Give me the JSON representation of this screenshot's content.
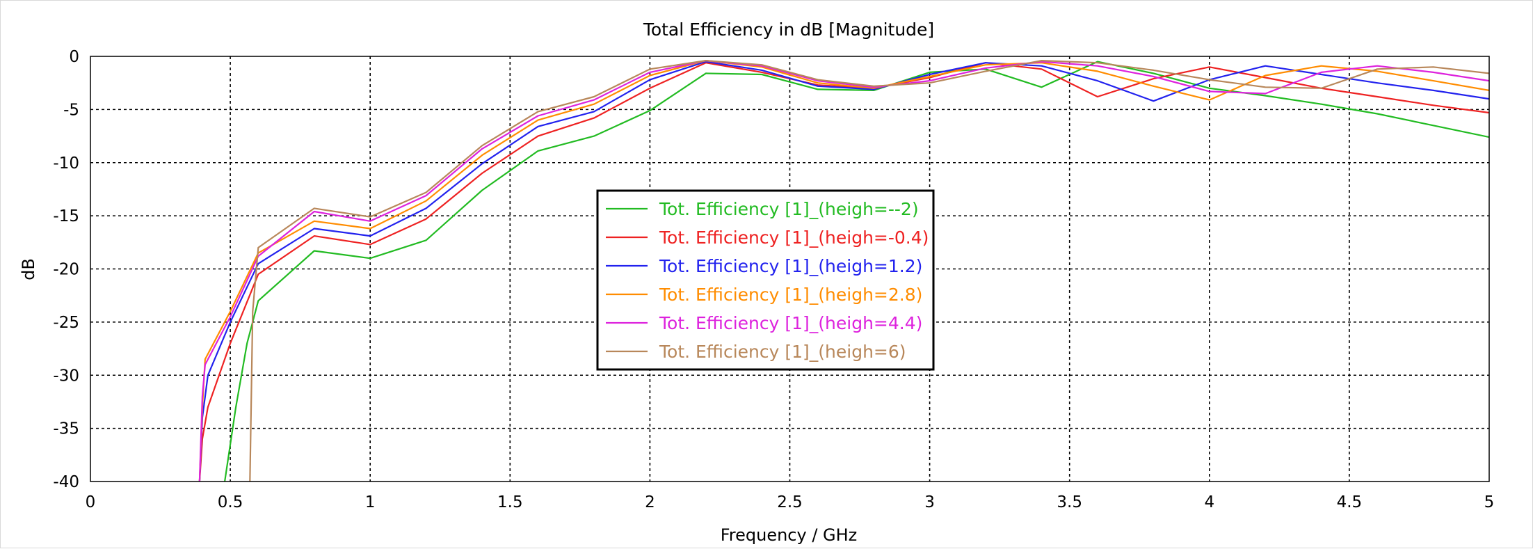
{
  "chart_data": {
    "type": "line",
    "title": "Total Efficiency in dB [Magnitude]",
    "xlabel": "Frequency / GHz",
    "ylabel": "dB",
    "xlim": [
      0,
      5
    ],
    "ylim": [
      -40,
      0
    ],
    "xticks": [
      0,
      0.5,
      1,
      1.5,
      2,
      2.5,
      3,
      3.5,
      4,
      4.5,
      5
    ],
    "xtick_labels": [
      "0",
      "0.5",
      "1",
      "1.5",
      "2",
      "2.5",
      "3",
      "3.5",
      "4",
      "4.5",
      "5"
    ],
    "yticks": [
      0,
      -5,
      -10,
      -15,
      -20,
      -25,
      -30,
      -35,
      -40
    ],
    "ytick_labels": [
      "0",
      "-5",
      "-10",
      "-15",
      "-20",
      "-25",
      "-30",
      "-35",
      "-40"
    ],
    "grid": true,
    "legend_position": "center",
    "series": [
      {
        "name": "Tot. Efficiency [1]_(heigh=--2)",
        "color": "#22bb22",
        "x": [
          0.48,
          0.52,
          0.56,
          0.6,
          0.8,
          1.0,
          1.2,
          1.4,
          1.6,
          1.8,
          2.0,
          2.2,
          2.4,
          2.6,
          2.8,
          3.0,
          3.2,
          3.4,
          3.6,
          3.8,
          4.0,
          4.2,
          4.4,
          4.6,
          4.8,
          5.0
        ],
        "y": [
          -40,
          -33,
          -27,
          -23,
          -18.3,
          -19,
          -17.3,
          -12.6,
          -8.9,
          -7.5,
          -5.1,
          -1.6,
          -1.7,
          -3.1,
          -3.2,
          -1.5,
          -1.2,
          -2.9,
          -0.5,
          -1.6,
          -3.0,
          -3.7,
          -4.5,
          -5.4,
          -6.5,
          -7.6
        ]
      },
      {
        "name": "Tot. Efficiency [1]_(heigh=-0.4)",
        "color": "#ee2222",
        "x": [
          0.39,
          0.4,
          0.42,
          0.5,
          0.6,
          0.8,
          1.0,
          1.2,
          1.4,
          1.6,
          1.8,
          2.0,
          2.2,
          2.4,
          2.6,
          2.8,
          3.0,
          3.2,
          3.4,
          3.6,
          3.8,
          4.0,
          4.2,
          4.4,
          4.6,
          4.8,
          5.0
        ],
        "y": [
          -40,
          -36,
          -33,
          -27,
          -20.5,
          -16.9,
          -17.7,
          -15.3,
          -11.0,
          -7.5,
          -5.8,
          -3.0,
          -0.6,
          -1.5,
          -2.7,
          -3.0,
          -2.0,
          -0.6,
          -1.2,
          -3.8,
          -2.1,
          -1.0,
          -2.0,
          -3.0,
          -3.8,
          -4.6,
          -5.3
        ]
      },
      {
        "name": "Tot. Efficiency [1]_(heigh=1.2)",
        "color": "#2222ee",
        "x": [
          0.39,
          0.4,
          0.42,
          0.5,
          0.6,
          0.8,
          1.0,
          1.2,
          1.4,
          1.6,
          1.8,
          2.0,
          2.2,
          2.4,
          2.6,
          2.8,
          3.0,
          3.2,
          3.4,
          3.6,
          3.8,
          4.0,
          4.2,
          4.4,
          4.6,
          4.8,
          5.0
        ],
        "y": [
          -40,
          -34,
          -30,
          -25,
          -19.5,
          -16.2,
          -16.9,
          -14.3,
          -10.1,
          -6.6,
          -5.2,
          -2.2,
          -0.5,
          -1.3,
          -2.8,
          -3.1,
          -1.7,
          -0.6,
          -0.9,
          -2.3,
          -4.2,
          -2.2,
          -0.9,
          -1.7,
          -2.5,
          -3.2,
          -4.0
        ]
      },
      {
        "name": "Tot. Efficiency [1]_(heigh=2.8)",
        "color": "#ff8c00",
        "x": [
          0.39,
          0.4,
          0.41,
          0.5,
          0.6,
          0.8,
          1.0,
          1.2,
          1.4,
          1.6,
          1.8,
          2.0,
          2.2,
          2.4,
          2.6,
          2.8,
          3.0,
          3.2,
          3.4,
          3.6,
          3.8,
          4.0,
          4.2,
          4.4,
          4.6,
          4.8,
          5.0
        ],
        "y": [
          -40,
          -33,
          -28.5,
          -24,
          -18.5,
          -15.5,
          -16.2,
          -13.6,
          -9.3,
          -6.0,
          -4.5,
          -1.8,
          -0.4,
          -1.0,
          -2.5,
          -3.0,
          -1.9,
          -0.8,
          -0.6,
          -1.4,
          -2.8,
          -4.1,
          -1.8,
          -0.9,
          -1.4,
          -2.3,
          -3.2
        ]
      },
      {
        "name": "Tot. Efficiency [1]_(heigh=4.4)",
        "color": "#dd22dd",
        "x": [
          0.39,
          0.4,
          0.41,
          0.5,
          0.6,
          0.8,
          1.0,
          1.2,
          1.4,
          1.6,
          1.8,
          2.0,
          2.2,
          2.4,
          2.6,
          2.8,
          3.0,
          3.2,
          3.4,
          3.6,
          3.8,
          4.0,
          4.2,
          4.4,
          4.6,
          4.8,
          5.0
        ],
        "y": [
          -40,
          -32,
          -29,
          -24.5,
          -18.8,
          -14.6,
          -15.5,
          -13.1,
          -8.7,
          -5.6,
          -4.1,
          -1.5,
          -0.4,
          -0.9,
          -2.3,
          -2.9,
          -2.3,
          -1.1,
          -0.5,
          -0.9,
          -1.9,
          -3.3,
          -3.5,
          -1.5,
          -0.9,
          -1.5,
          -2.3
        ]
      },
      {
        "name": "Tot. Efficiency [1]_(heigh=6)",
        "color": "#b8875a",
        "x": [
          0.57,
          0.58,
          0.6,
          0.8,
          1.0,
          1.2,
          1.4,
          1.6,
          1.8,
          2.0,
          2.2,
          2.4,
          2.6,
          2.8,
          3.0,
          3.2,
          3.4,
          3.6,
          3.8,
          4.0,
          4.2,
          4.4,
          4.6,
          4.8,
          5.0
        ],
        "y": [
          -40,
          -24,
          -18,
          -14.3,
          -15.1,
          -12.8,
          -8.4,
          -5.2,
          -3.8,
          -1.2,
          -0.4,
          -0.8,
          -2.2,
          -2.8,
          -2.5,
          -1.4,
          -0.4,
          -0.6,
          -1.3,
          -2.2,
          -2.9,
          -3.0,
          -1.2,
          -1.0,
          -1.6
        ]
      }
    ]
  }
}
